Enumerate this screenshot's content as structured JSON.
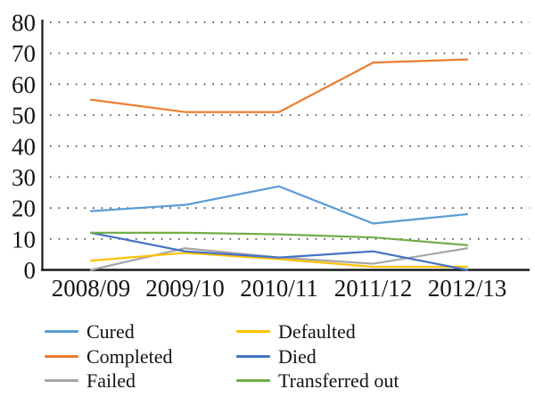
{
  "figure": {
    "background_color": "#ffffff",
    "axis_color": "#1a1a1a",
    "gridline_color": "#444444",
    "text_color": "#141414"
  },
  "chart_data": {
    "type": "line",
    "title": "",
    "xlabel": "",
    "ylabel": "",
    "categories": [
      "2008/09",
      "2009/10",
      "2010/11",
      "2011/12",
      "2012/13"
    ],
    "series": [
      {
        "name": "Cured",
        "color": "#5B9BD5",
        "values": [
          19,
          21,
          27,
          15,
          18
        ]
      },
      {
        "name": "Completed",
        "color": "#ED7D31",
        "values": [
          55,
          51,
          51,
          67,
          68
        ]
      },
      {
        "name": "Failed",
        "color": "#A5A5A5",
        "values": [
          0,
          7,
          4,
          2,
          7
        ]
      },
      {
        "name": "Defaulted",
        "color": "#FFC000",
        "values": [
          3,
          5.5,
          3.5,
          1,
          1
        ]
      },
      {
        "name": "Died",
        "color": "#4472C4",
        "values": [
          12,
          6,
          4,
          6,
          0
        ]
      },
      {
        "name": "Transferred out",
        "color": "#70AD47",
        "values": [
          12,
          12,
          11.5,
          10.5,
          8
        ]
      }
    ],
    "ylim": [
      0,
      80
    ],
    "yticks": [
      0,
      10,
      20,
      30,
      40,
      50,
      60,
      70,
      80
    ],
    "grid": "horizontal dotted lines at each y tick, 0 line solid (x-axis)",
    "legend_position": "bottom",
    "legend_columns": [
      [
        "Cured",
        "Completed",
        "Failed"
      ],
      [
        "Defaulted",
        "Died",
        "Transferred out"
      ]
    ]
  }
}
